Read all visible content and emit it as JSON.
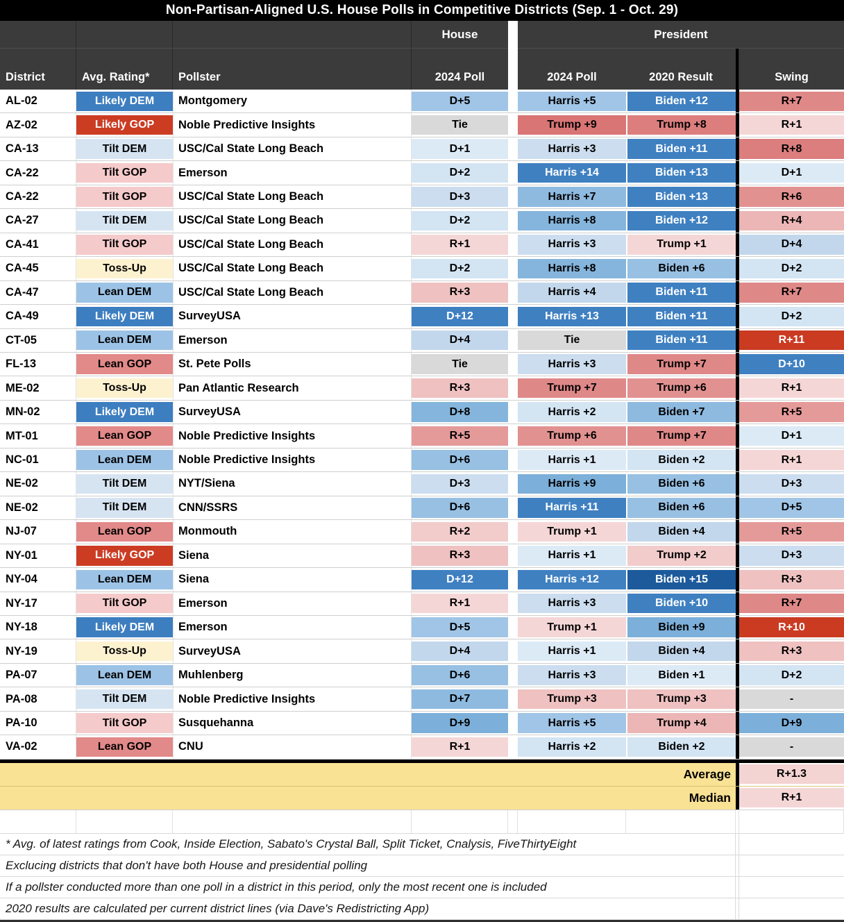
{
  "title": "Non-Partisan-Aligned U.S. House Polls in Competitive Districts (Sep. 1 - Oct. 29)",
  "chart_data": {
    "type": "table",
    "title": "Non-Partisan-Aligned U.S. House Polls in Competitive Districts (Sep. 1 - Oct. 29)",
    "group_headers": {
      "house": "House",
      "president": "President"
    },
    "columns": [
      "District",
      "Avg. Rating*",
      "Pollster",
      "2024 Poll",
      "2024 Poll",
      "2020 Result",
      "Swing"
    ],
    "rows": [
      [
        "AL-02",
        "Likely DEM",
        "Montgomery",
        "D+5",
        "Harris +5",
        "Biden +12",
        "R+7"
      ],
      [
        "AZ-02",
        "Likely GOP",
        "Noble Predictive Insights",
        "Tie",
        "Trump +9",
        "Trump +8",
        "R+1"
      ],
      [
        "CA-13",
        "Tilt DEM",
        "USC/Cal State Long Beach",
        "D+1",
        "Harris +3",
        "Biden +11",
        "R+8"
      ],
      [
        "CA-22",
        "Tilt GOP",
        "Emerson",
        "D+2",
        "Harris +14",
        "Biden +13",
        "D+1"
      ],
      [
        "CA-22",
        "Tilt GOP",
        "USC/Cal State Long Beach",
        "D+3",
        "Harris +7",
        "Biden +13",
        "R+6"
      ],
      [
        "CA-27",
        "Tilt DEM",
        "USC/Cal State Long Beach",
        "D+2",
        "Harris +8",
        "Biden +12",
        "R+4"
      ],
      [
        "CA-41",
        "Tilt GOP",
        "USC/Cal State Long Beach",
        "R+1",
        "Harris +3",
        "Trump +1",
        "D+4"
      ],
      [
        "CA-45",
        "Toss-Up",
        "USC/Cal State Long Beach",
        "D+2",
        "Harris +8",
        "Biden +6",
        "D+2"
      ],
      [
        "CA-47",
        "Lean DEM",
        "USC/Cal State Long Beach",
        "R+3",
        "Harris +4",
        "Biden +11",
        "R+7"
      ],
      [
        "CA-49",
        "Likely DEM",
        "SurveyUSA",
        "D+12",
        "Harris +13",
        "Biden +11",
        "D+2"
      ],
      [
        "CT-05",
        "Lean DEM",
        "Emerson",
        "D+4",
        "Tie",
        "Biden +11",
        "R+11"
      ],
      [
        "FL-13",
        "Lean GOP",
        "St. Pete Polls",
        "Tie",
        "Harris +3",
        "Trump +7",
        "D+10"
      ],
      [
        "ME-02",
        "Toss-Up",
        "Pan Atlantic Research",
        "R+3",
        "Trump +7",
        "Trump +6",
        "R+1"
      ],
      [
        "MN-02",
        "Likely DEM",
        "SurveyUSA",
        "D+8",
        "Harris +2",
        "Biden +7",
        "R+5"
      ],
      [
        "MT-01",
        "Lean GOP",
        "Noble Predictive Insights",
        "R+5",
        "Trump +6",
        "Trump +7",
        "D+1"
      ],
      [
        "NC-01",
        "Lean DEM",
        "Noble Predictive Insights",
        "D+6",
        "Harris +1",
        "Biden +2",
        "R+1"
      ],
      [
        "NE-02",
        "Tilt DEM",
        "NYT/Siena",
        "D+3",
        "Harris +9",
        "Biden +6",
        "D+3"
      ],
      [
        "NE-02",
        "Tilt DEM",
        "CNN/SSRS",
        "D+6",
        "Harris +11",
        "Biden +6",
        "D+5"
      ],
      [
        "NJ-07",
        "Lean GOP",
        "Monmouth",
        "R+2",
        "Trump +1",
        "Biden +4",
        "R+5"
      ],
      [
        "NY-01",
        "Likely GOP",
        "Siena",
        "R+3",
        "Harris +1",
        "Trump +2",
        "D+3"
      ],
      [
        "NY-04",
        "Lean DEM",
        "Siena",
        "D+12",
        "Harris +12",
        "Biden +15",
        "R+3"
      ],
      [
        "NY-17",
        "Tilt GOP",
        "Emerson",
        "R+1",
        "Harris +3",
        "Biden +10",
        "R+7"
      ],
      [
        "NY-18",
        "Likely DEM",
        "Emerson",
        "D+5",
        "Trump +1",
        "Biden +9",
        "R+10"
      ],
      [
        "NY-19",
        "Toss-Up",
        "SurveyUSA",
        "D+4",
        "Harris +1",
        "Biden +4",
        "R+3"
      ],
      [
        "PA-07",
        "Lean DEM",
        "Muhlenberg",
        "D+6",
        "Harris +3",
        "Biden +1",
        "D+2"
      ],
      [
        "PA-08",
        "Tilt DEM",
        "Noble Predictive Insights",
        "D+7",
        "Trump +3",
        "Trump +3",
        "-"
      ],
      [
        "PA-10",
        "Tilt GOP",
        "Susquehanna",
        "D+9",
        "Harris +5",
        "Trump +4",
        "D+9"
      ],
      [
        "VA-02",
        "Lean GOP",
        "CNU",
        "R+1",
        "Harris +2",
        "Biden +2",
        "-"
      ]
    ],
    "summary": [
      {
        "label": "Average",
        "value": "R+1.3"
      },
      {
        "label": "Median",
        "value": "R+1"
      }
    ],
    "footnotes": [
      "* Avg. of latest ratings from Cook, Inside Election, Sabato's Crystal Ball, Split Ticket, Cnalysis, FiveThirtyEight",
      "Exclucing districts that don't have both House and presidential polling",
      "If a pollster conducted more than one poll in a district in this period, only the most recent one is included",
      "2020 results are calculated per current district lines (via Dave's Redistricting App)"
    ]
  },
  "colors": {
    "title_bg": "#000000",
    "header_bg": "#3b3b3b",
    "summary_bg": "#fae294",
    "neutral": "#d9d9d9",
    "dem_strong": "#3f80c1",
    "dem_deep": "#1c5a9c",
    "gop_strong": "#ca3b22",
    "gop_deep": "#a33118",
    "dem_scale": {
      "1": "#dceaf6",
      "4": "#c2d7ec",
      "5": "#a0c5e6",
      "9": "#7cafd9"
    },
    "gop_scale": {
      "1": "#f5d6d6",
      "4": "#ecb6b6",
      "5": "#e59a9a",
      "9": "#d97575"
    },
    "rating": {
      "Likely DEM": "#3d7ec0",
      "Lean DEM": "#9cc3e6",
      "Tilt DEM": "#d6e4f2",
      "Toss-Up": "#fdf2d0",
      "Tilt GOP": "#f5caca",
      "Lean GOP": "#e28989",
      "Likely GOP": "#cb3c23"
    },
    "rating_white": [
      "Likely DEM",
      "Likely GOP"
    ]
  }
}
